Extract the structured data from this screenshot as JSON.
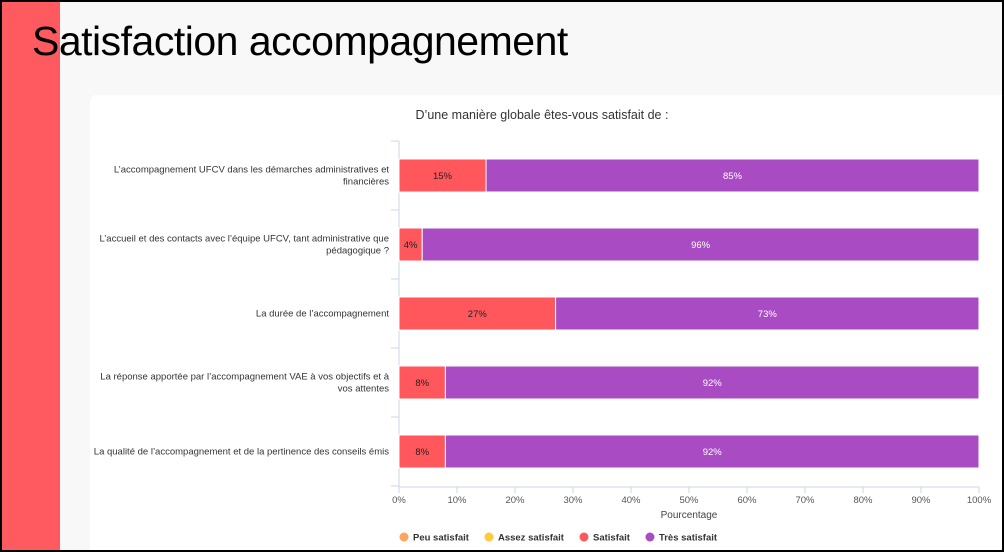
{
  "page": {
    "title": "Satisfaction accompagnement"
  },
  "chart_data": {
    "type": "bar",
    "orientation": "horizontal",
    "stacked": true,
    "title": "D’une manière globale êtes-vous satisfait de :",
    "xlabel": "Pourcentage",
    "ylabel": "",
    "xlim": [
      0,
      100
    ],
    "xticks": [
      "0%",
      "10%",
      "20%",
      "30%",
      "40%",
      "50%",
      "60%",
      "70%",
      "80%",
      "90%",
      "100%"
    ],
    "categories": [
      [
        "L’accompagnement UFCV dans les démarches administratives et",
        "financières"
      ],
      [
        "L’accueil et des contacts avec l’équipe UFCV, tant administrative que",
        "pédagogique ?"
      ],
      [
        "La durée de l’accompagnement"
      ],
      [
        "La réponse apportée par l’accompagnement VAE à vos objectifs et à",
        "vos attentes"
      ],
      [
        "La qualité de l’accompagnement et de la pertinence des conseils émis"
      ]
    ],
    "series": [
      {
        "name": "Peu satisfait",
        "color": "#ffa45c",
        "values": [
          0,
          0,
          0,
          0,
          0
        ]
      },
      {
        "name": "Assez satisfait",
        "color": "#ffc93c",
        "values": [
          0,
          0,
          0,
          0,
          0
        ]
      },
      {
        "name": "Satisfait",
        "color": "#ff575c",
        "values": [
          15,
          4,
          27,
          8,
          8
        ]
      },
      {
        "name": "Très satisfait",
        "color": "#a94cc4",
        "values": [
          85,
          96,
          73,
          92,
          92
        ]
      }
    ],
    "legend_position": "bottom-left"
  }
}
